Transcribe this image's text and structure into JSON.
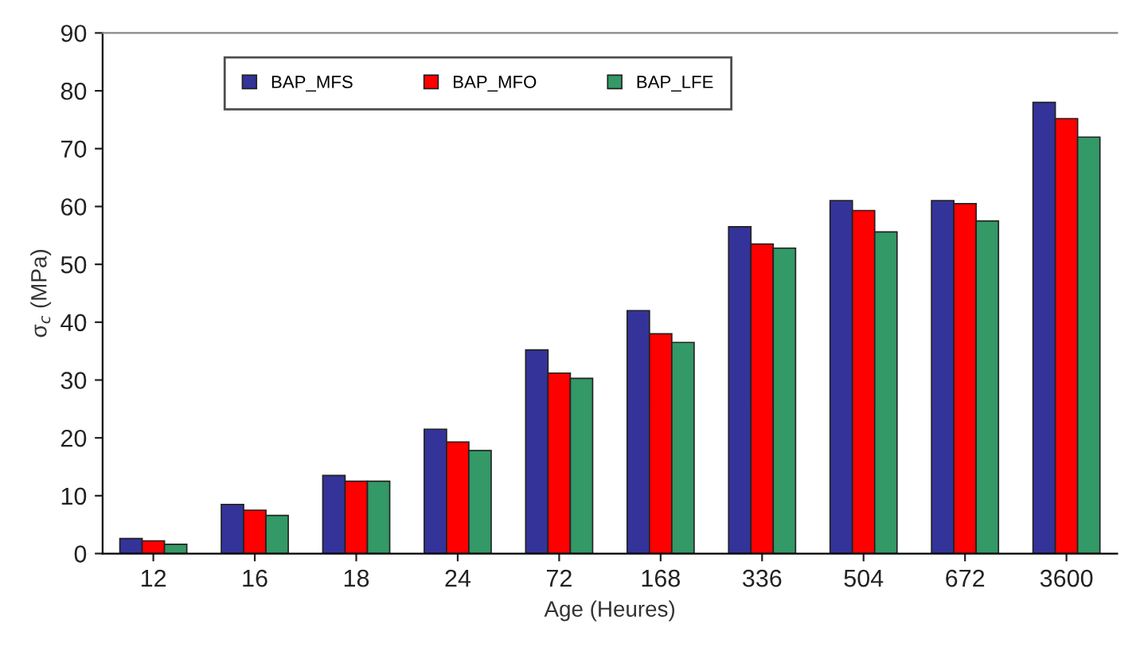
{
  "chart_data": {
    "type": "bar",
    "xlabel": "Age (Heures)",
    "ylabel": "σ$_{c}$ (MPa)",
    "categories": [
      "12",
      "16",
      "18",
      "24",
      "72",
      "168",
      "336",
      "504",
      "672",
      "3600"
    ],
    "series": [
      {
        "name": "BAP_MFS",
        "color": "#333399",
        "values": [
          2.6,
          8.5,
          13.5,
          21.5,
          35.2,
          42,
          56.5,
          61,
          61,
          78
        ]
      },
      {
        "name": "BAP_MFO",
        "color": "#ff0000",
        "values": [
          2.2,
          7.5,
          12.5,
          19.3,
          31.2,
          38,
          53.5,
          59.3,
          60.5,
          75.2
        ]
      },
      {
        "name": "BAP_LFE",
        "color": "#339966",
        "values": [
          1.6,
          6.6,
          12.5,
          17.8,
          30.3,
          36.5,
          52.8,
          55.6,
          57.5,
          72
        ]
      }
    ],
    "ylim": [
      0,
      90
    ],
    "yticks": [
      0,
      10,
      20,
      30,
      40,
      50,
      60,
      70,
      80,
      90
    ],
    "grid": false,
    "legend": "top"
  }
}
